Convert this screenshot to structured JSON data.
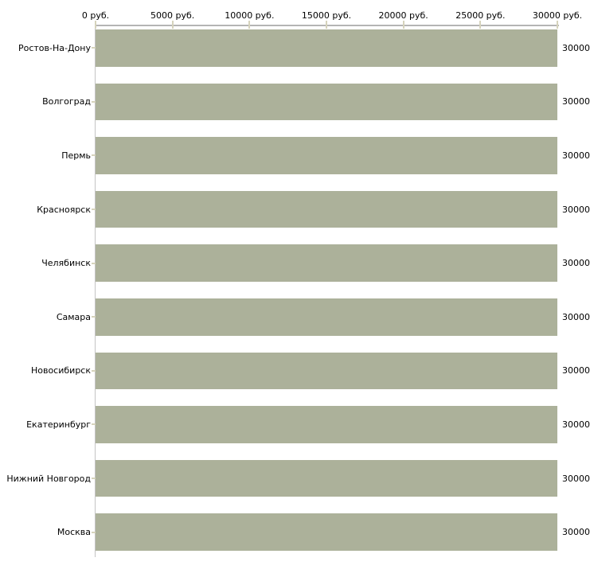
{
  "chart_data": {
    "type": "bar",
    "orientation": "horizontal",
    "title": "",
    "unit": "руб.",
    "categories": [
      "Ростов-На-Дону",
      "Волгоград",
      "Пермь",
      "Красноярск",
      "Челябинск",
      "Самара",
      "Новосибирск",
      "Екатеринбург",
      "Нижний Новгород",
      "Москва"
    ],
    "values": [
      30000,
      30000,
      30000,
      30000,
      30000,
      30000,
      30000,
      30000,
      30000,
      30000
    ],
    "value_labels": [
      "30000",
      "30000",
      "30000",
      "30000",
      "30000",
      "30000",
      "30000",
      "30000",
      "30000",
      "30000"
    ],
    "x_axis": {
      "position": "top",
      "range": [
        0,
        30000
      ],
      "tick_values": [
        0,
        5000,
        10000,
        15000,
        20000,
        25000,
        30000
      ],
      "tick_labels": [
        "0 руб.",
        "5000 руб.",
        "10000 руб.",
        "15000 руб.",
        "20000 руб.",
        "25000 руб.",
        "30000 руб."
      ]
    },
    "grid": false,
    "legend": "none",
    "colors": {
      "bar": "#ACB19A",
      "axis_line": "#B4B4B4",
      "tick_mark": "#D6D3BC",
      "text": "#000000",
      "background": "#FFFFFF"
    }
  }
}
